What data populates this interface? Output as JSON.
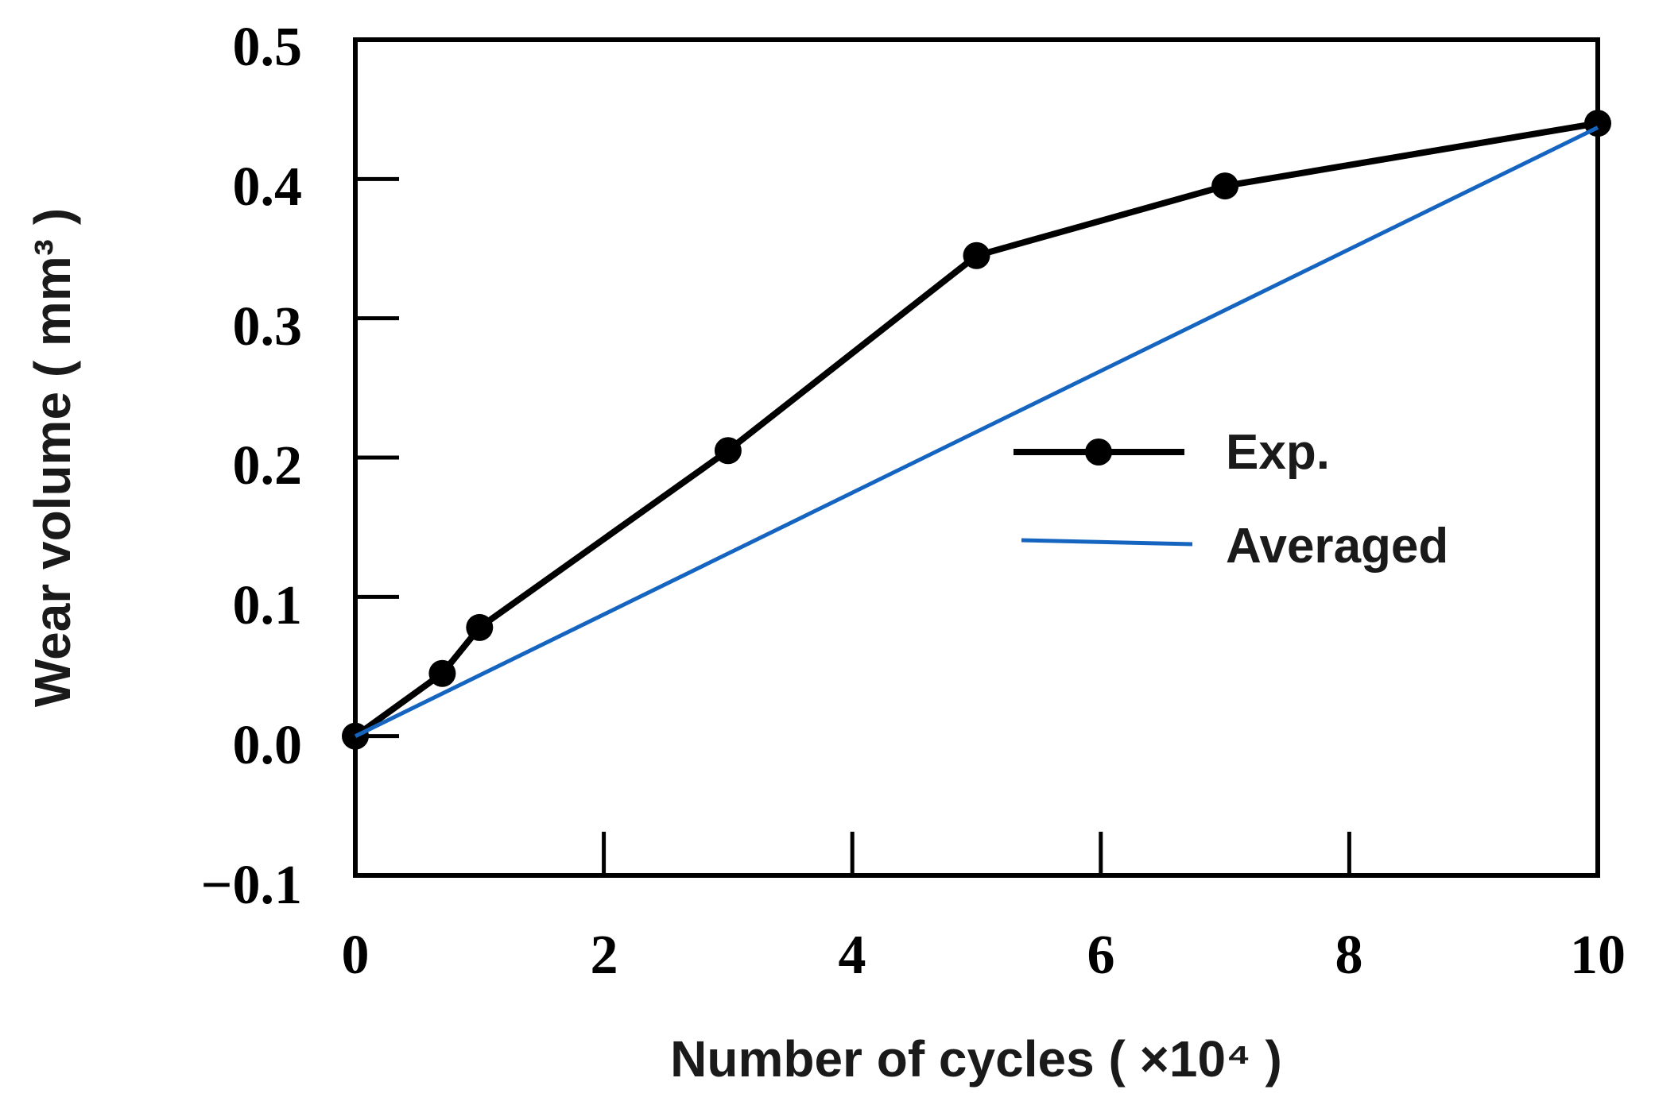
{
  "chart_data": {
    "type": "line",
    "title": "",
    "xlabel": "Number of cycles ( ×10⁴ )",
    "ylabel": "Wear volume ( mm³ )",
    "xlim": [
      0,
      10
    ],
    "ylim": [
      -0.1,
      0.5
    ],
    "x_ticks": [
      "0",
      "2",
      "4",
      "6",
      "8",
      "10"
    ],
    "y_ticks": [
      "0.5",
      "0.4",
      "0.3",
      "0.2",
      "0.1",
      "0.0",
      "−0.1"
    ],
    "grid": false,
    "legend_position": "center-right",
    "series": [
      {
        "name": "Exp.",
        "color": "#000000",
        "marker": "circle",
        "x": [
          0,
          0.7,
          1.0,
          3.0,
          5.0,
          7.0,
          10.0
        ],
        "y": [
          0.0,
          0.045,
          0.078,
          0.205,
          0.345,
          0.395,
          0.44
        ]
      },
      {
        "name": "Averaged",
        "color": "#1565c0",
        "marker": "none",
        "x": [
          0,
          10
        ],
        "y": [
          0.0,
          0.437
        ]
      }
    ]
  }
}
